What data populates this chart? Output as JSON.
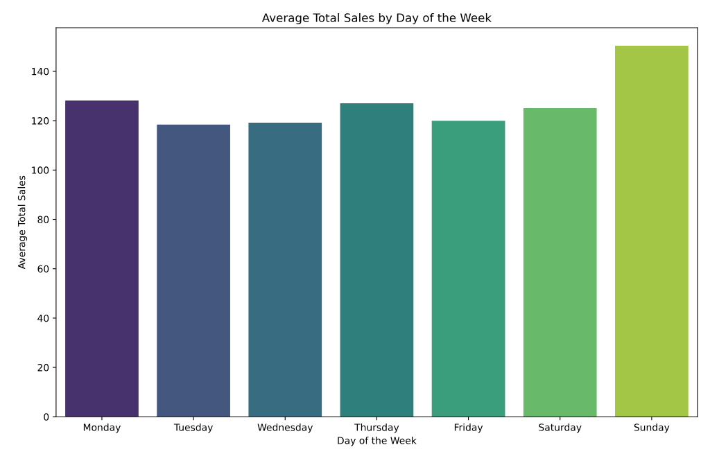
{
  "chart_data": {
    "type": "bar",
    "title": "Average Total Sales by Day of the Week",
    "xlabel": "Day of the Week",
    "ylabel": "Average Total Sales",
    "categories": [
      "Monday",
      "Tuesday",
      "Wednesday",
      "Thursday",
      "Friday",
      "Saturday",
      "Sunday"
    ],
    "values": [
      128.2,
      118.4,
      119.2,
      127.1,
      120.0,
      125.1,
      150.4
    ],
    "colors": [
      "#48326e",
      "#43577f",
      "#386c80",
      "#2e807c",
      "#3a9e7c",
      "#69b96a",
      "#a3c646"
    ],
    "ylim": [
      0,
      157.7
    ],
    "yticks": [
      0,
      20,
      40,
      60,
      80,
      100,
      120,
      140
    ],
    "grid": false
  }
}
